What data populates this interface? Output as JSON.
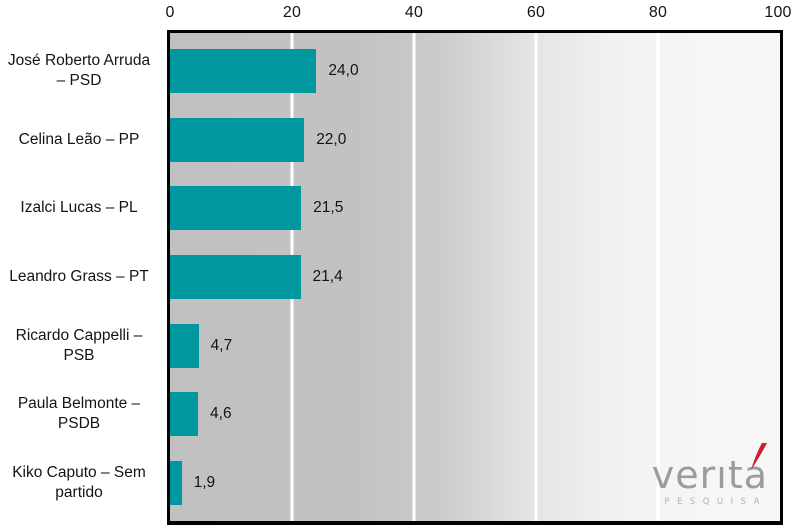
{
  "chart_data": {
    "type": "bar",
    "orientation": "horizontal",
    "title": "",
    "categories": [
      "José Roberto Arruda – PSD",
      "Celina Leão – PP",
      "Izalci Lucas – PL",
      "Leandro Grass – PT",
      "Ricardo Cappelli – PSB",
      "Paula Belmonte – PSDB",
      "Kiko Caputo – Sem partido"
    ],
    "category_lines": [
      [
        "José Roberto Arruda",
        "– PSD"
      ],
      [
        "Celina Leão – PP",
        ""
      ],
      [
        "Izalci Lucas – PL",
        ""
      ],
      [
        "Leandro Grass – PT",
        ""
      ],
      [
        "Ricardo Cappelli –",
        "PSB"
      ],
      [
        "Paula Belmonte –",
        "PSDB"
      ],
      [
        "Kiko Caputo – Sem",
        "partido"
      ]
    ],
    "values": [
      24.0,
      22.0,
      21.5,
      21.4,
      4.7,
      4.6,
      1.9
    ],
    "value_labels": [
      "24,0",
      "22,0",
      "21,5",
      "21,4",
      "4,7",
      "4,6",
      "1,9"
    ],
    "x_ticks": [
      "0",
      "20",
      "40",
      "60",
      "80",
      "100"
    ],
    "xlim": [
      0,
      100
    ],
    "axis_position": "top",
    "grid": {
      "vertical_lines_at": [
        20,
        40,
        60,
        80
      ],
      "color": "#ffffff"
    },
    "legend": "none"
  },
  "colors": {
    "bar": "#00989e",
    "plot_background_left": "#c1c1c1",
    "plot_background_right": "#f7f7f7",
    "plot_border": "#000000",
    "gridline": "#ffffff",
    "text": "#141414",
    "logo_text": "#9c9c9c",
    "logo_sub": "#b3b3b3",
    "logo_accent": "#cb2030"
  },
  "watermark": {
    "brand": "veritá",
    "brand_display": "verıta",
    "subtitle": "PESQUISA"
  }
}
